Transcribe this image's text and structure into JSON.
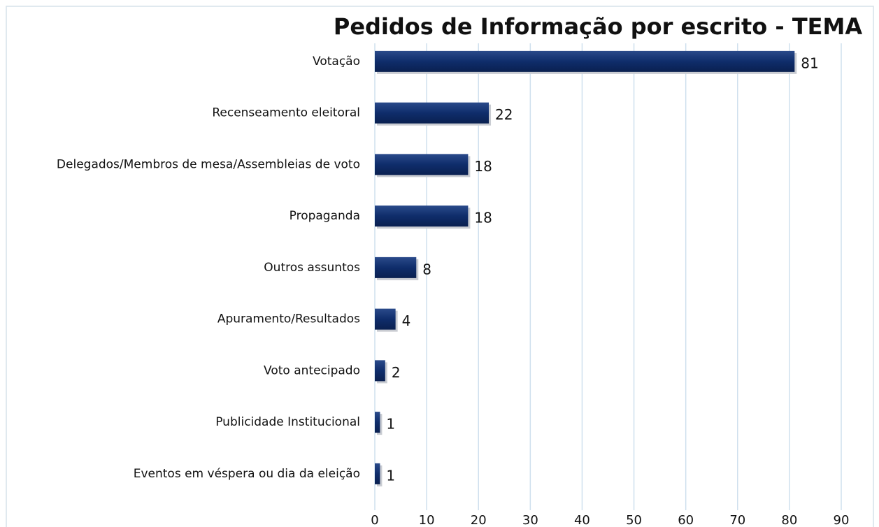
{
  "chart_data": {
    "type": "bar",
    "orientation": "horizontal",
    "title": "Pedidos de Informação por escrito - TEMA",
    "categories": [
      "Votação",
      "Recenseamento eleitoral",
      "Delegados/Membros de mesa/Assembleias de voto",
      "Propaganda",
      "Outros assuntos",
      "Apuramento/Resultados",
      "Voto antecipado",
      "Publicidade Institucional",
      "Eventos em véspera ou dia da eleição"
    ],
    "values": [
      81,
      22,
      18,
      18,
      8,
      4,
      2,
      1,
      1
    ],
    "color": "#0f2d6b",
    "xlim": [
      0,
      90
    ],
    "xticks": [
      0,
      10,
      20,
      30,
      40,
      50,
      60,
      70,
      80,
      90
    ],
    "grid": true
  }
}
